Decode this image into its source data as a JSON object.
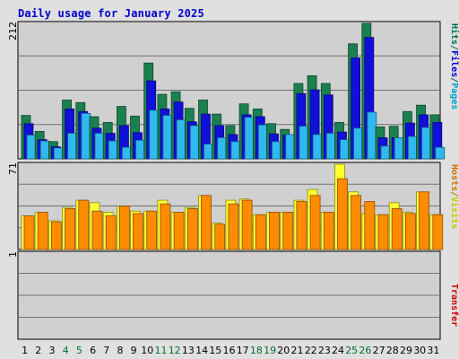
{
  "title": "Daily usage for January 2025",
  "chart_data": [
    {
      "type": "bar",
      "panel": "requests",
      "ymax_label": "212",
      "ylim": [
        0,
        212
      ],
      "grid": true,
      "side_label": [
        {
          "text": "Hits",
          "color": "#007050"
        },
        {
          "text": "/",
          "color": "#007050"
        },
        {
          "text": "Files",
          "color": "#0000d0"
        },
        {
          "text": "/",
          "color": "#007050"
        },
        {
          "text": "Pages",
          "color": "#00a0d0"
        }
      ],
      "series": [
        {
          "name": "Hits",
          "color": "#1a8050",
          "values": [
            68,
            43,
            27,
            92,
            88,
            66,
            57,
            82,
            67,
            150,
            101,
            105,
            79,
            92,
            70,
            52,
            86,
            78,
            55,
            46,
            118,
            130,
            118,
            57,
            180,
            212,
            50,
            51,
            74,
            84,
            69
          ]
        },
        {
          "name": "Files",
          "color": "#1010d8",
          "values": [
            55,
            30,
            19,
            78,
            74,
            48,
            40,
            52,
            41,
            122,
            78,
            89,
            58,
            70,
            52,
            38,
            69,
            66,
            39,
            37,
            102,
            108,
            100,
            42,
            158,
            190,
            33,
            33,
            56,
            69,
            57
          ]
        },
        {
          "name": "Pages",
          "color": "#30b8f0",
          "values": [
            37,
            28,
            17,
            40,
            71,
            40,
            28,
            18,
            29,
            76,
            68,
            61,
            52,
            23,
            33,
            27,
            65,
            53,
            27,
            38,
            51,
            38,
            40,
            30,
            48,
            73,
            20,
            33,
            35,
            49,
            18
          ]
        }
      ],
      "categories": [
        "1",
        "2",
        "3",
        "4",
        "5",
        "6",
        "7",
        "8",
        "9",
        "10",
        "11",
        "12",
        "13",
        "14",
        "15",
        "16",
        "17",
        "18",
        "19",
        "20",
        "21",
        "22",
        "23",
        "24",
        "25",
        "26",
        "27",
        "28",
        "29",
        "30",
        "31"
      ]
    },
    {
      "type": "bar",
      "panel": "visits",
      "ymax_label": "71",
      "ylim": [
        0,
        71
      ],
      "grid": true,
      "side_label": [
        {
          "text": "Hosts",
          "color": "#d07000"
        },
        {
          "text": "/",
          "color": "#d07000"
        },
        {
          "text": "Visits",
          "color": "#c8c800"
        }
      ],
      "series": [
        {
          "name": "Visits",
          "color": "#ffff30",
          "values": [
            28,
            31,
            24,
            35,
            41,
            39,
            31,
            36,
            32,
            32,
            41,
            31,
            35,
            45,
            22,
            41,
            42,
            29,
            31,
            31,
            41,
            50,
            31,
            71,
            48,
            30,
            29,
            39,
            31,
            48,
            29
          ]
        },
        {
          "name": "Hosts",
          "color": "#ff8c00",
          "values": [
            28,
            31,
            23,
            34,
            41,
            32,
            28,
            36,
            30,
            32,
            38,
            31,
            34,
            45,
            21,
            38,
            41,
            29,
            31,
            31,
            40,
            45,
            31,
            59,
            45,
            40,
            29,
            34,
            30,
            48,
            29
          ]
        }
      ],
      "categories": [
        "1",
        "2",
        "3",
        "4",
        "5",
        "6",
        "7",
        "8",
        "9",
        "10",
        "11",
        "12",
        "13",
        "14",
        "15",
        "16",
        "17",
        "18",
        "19",
        "20",
        "21",
        "22",
        "23",
        "24",
        "25",
        "26",
        "27",
        "28",
        "29",
        "30",
        "31"
      ]
    },
    {
      "type": "bar",
      "panel": "transfer",
      "ymax_label": "1",
      "ylim": [
        0,
        1
      ],
      "grid": true,
      "side_label": [
        {
          "text": "Transfer",
          "color": "#cc0000"
        }
      ],
      "series": [],
      "categories": [
        "1",
        "2",
        "3",
        "4",
        "5",
        "6",
        "7",
        "8",
        "9",
        "10",
        "11",
        "12",
        "13",
        "14",
        "15",
        "16",
        "17",
        "18",
        "19",
        "20",
        "21",
        "22",
        "23",
        "24",
        "25",
        "26",
        "27",
        "28",
        "29",
        "30",
        "31"
      ]
    }
  ],
  "x_labels": [
    {
      "text": "1",
      "color": "#000000"
    },
    {
      "text": "2",
      "color": "#000000"
    },
    {
      "text": "3",
      "color": "#000000"
    },
    {
      "text": "4",
      "color": "#007030"
    },
    {
      "text": "5",
      "color": "#007030"
    },
    {
      "text": "6",
      "color": "#000000"
    },
    {
      "text": "7",
      "color": "#000000"
    },
    {
      "text": "8",
      "color": "#000000"
    },
    {
      "text": "9",
      "color": "#000000"
    },
    {
      "text": "10",
      "color": "#000000"
    },
    {
      "text": "11",
      "color": "#007030"
    },
    {
      "text": "12",
      "color": "#007030"
    },
    {
      "text": "13",
      "color": "#000000"
    },
    {
      "text": "14",
      "color": "#000000"
    },
    {
      "text": "15",
      "color": "#000000"
    },
    {
      "text": "16",
      "color": "#000000"
    },
    {
      "text": "17",
      "color": "#000000"
    },
    {
      "text": "18",
      "color": "#007030"
    },
    {
      "text": "19",
      "color": "#007030"
    },
    {
      "text": "20",
      "color": "#000000"
    },
    {
      "text": "21",
      "color": "#000000"
    },
    {
      "text": "22",
      "color": "#000000"
    },
    {
      "text": "23",
      "color": "#000000"
    },
    {
      "text": "24",
      "color": "#000000"
    },
    {
      "text": "25",
      "color": "#007030"
    },
    {
      "text": "26",
      "color": "#007030"
    },
    {
      "text": "27",
      "color": "#000000"
    },
    {
      "text": "28",
      "color": "#000000"
    },
    {
      "text": "29",
      "color": "#000000"
    },
    {
      "text": "30",
      "color": "#000000"
    },
    {
      "text": "31",
      "color": "#000000"
    }
  ]
}
